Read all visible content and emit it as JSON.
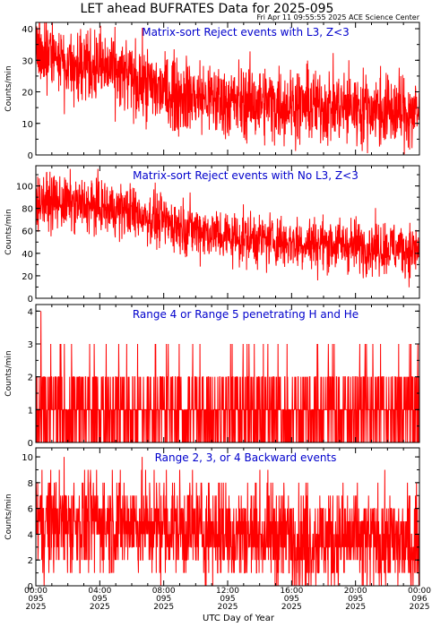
{
  "title": "LET ahead BUFRATES Data for 2025-095",
  "timestamp": "Fri Apr 11 09:55:55 2025 ACE Science Center",
  "xlabel": "UTC Day of Year",
  "colors": {
    "series": "#ff0000",
    "panel_title": "#0000cc",
    "axes": "#000000"
  },
  "x_ticks": [
    {
      "time": "00:00",
      "doy": "095",
      "year": "2025"
    },
    {
      "time": "04:00",
      "doy": "095",
      "year": "2025"
    },
    {
      "time": "08:00",
      "doy": "095",
      "year": "2025"
    },
    {
      "time": "12:00",
      "doy": "095",
      "year": "2025"
    },
    {
      "time": "16:00",
      "doy": "095",
      "year": "2025"
    },
    {
      "time": "20:00",
      "doy": "095",
      "year": "2025"
    },
    {
      "time": "00:00",
      "doy": "096",
      "year": "2025"
    }
  ],
  "chart_data": [
    {
      "type": "line",
      "title": "Matrix-sort Reject events with L3, Z<3",
      "ylabel": "Counts/min",
      "ylim": [
        0,
        42
      ],
      "yticks": [
        0,
        10,
        20,
        30,
        40
      ],
      "x_range_hours": [
        0,
        24
      ],
      "trend_hours": [
        0,
        2,
        4,
        6,
        8,
        12,
        16,
        20,
        24
      ],
      "trend_values": [
        32,
        30,
        28,
        24,
        20,
        17,
        16,
        15,
        13
      ],
      "scatter": 12,
      "integer_counts": false
    },
    {
      "type": "line",
      "title": "Matrix-sort Reject events with No L3, Z<3",
      "ylabel": "Counts/min",
      "ylim": [
        0,
        118
      ],
      "yticks": [
        0,
        20,
        40,
        60,
        80,
        100
      ],
      "x_range_hours": [
        0,
        24
      ],
      "trend_hours": [
        0,
        2,
        4,
        6,
        8,
        12,
        16,
        20,
        24
      ],
      "trend_values": [
        88,
        84,
        81,
        77,
        68,
        55,
        50,
        47,
        43
      ],
      "scatter": 24,
      "integer_counts": false
    },
    {
      "type": "line",
      "title": "Range 4 or Range 5 penetrating H and He",
      "ylabel": "Counts/min",
      "ylim": [
        0,
        4.2
      ],
      "yticks": [
        0,
        1,
        2,
        3,
        4
      ],
      "x_range_hours": [
        0,
        24
      ],
      "trend_hours": [
        0,
        12,
        24
      ],
      "trend_values": [
        0.9,
        0.9,
        0.9
      ],
      "scatter": 1.8,
      "integer_counts": true
    },
    {
      "type": "line",
      "title": "Range 2, 3, or 4 Backward events",
      "ylabel": "Counts/min",
      "ylim": [
        0,
        10.7
      ],
      "yticks": [
        0,
        2,
        4,
        6,
        8,
        10
      ],
      "x_range_hours": [
        0,
        24
      ],
      "trend_hours": [
        0,
        6,
        12,
        18,
        24
      ],
      "trend_values": [
        5,
        4.8,
        4.2,
        3.6,
        3.2
      ],
      "scatter": 4,
      "integer_counts": true
    }
  ]
}
